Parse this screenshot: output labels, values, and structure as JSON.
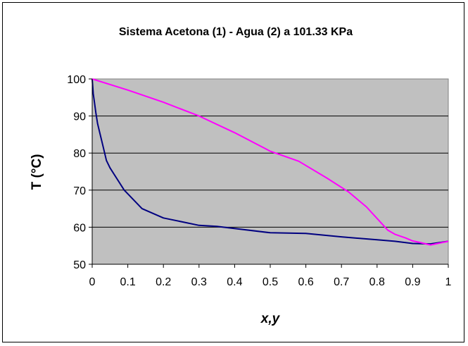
{
  "chart_data": {
    "type": "line",
    "title": "Sistema Acetona (1) - Agua (2) a 101.33 KPa",
    "xlabel": "x,y",
    "ylabel": "T (°C)",
    "xlim": [
      0,
      1
    ],
    "ylim": [
      50,
      100
    ],
    "x_ticks": [
      "0",
      "0.1",
      "0.2",
      "0.3",
      "0.4",
      "0.5",
      "0.6",
      "0.7",
      "0.8",
      "0.9",
      "1"
    ],
    "y_ticks": [
      "50",
      "60",
      "70",
      "80",
      "90",
      "100"
    ],
    "grid": true,
    "legend": "none",
    "colors": {
      "plot_background": "#c0c0c0",
      "liquid_line": "#000080",
      "vapor_line": "#ff00ff"
    },
    "series": [
      {
        "color": "#000080",
        "x": [
          0,
          0.003,
          0.006,
          0.01,
          0.015,
          0.02,
          0.03,
          0.04,
          0.05,
          0.07,
          0.09,
          0.1,
          0.12,
          0.14,
          0.2,
          0.3,
          0.35,
          0.5,
          0.6,
          0.7,
          0.8,
          0.85,
          0.9,
          0.95,
          1.0
        ],
        "y": [
          100,
          96,
          94,
          91,
          88,
          86,
          82,
          78,
          76,
          73,
          70,
          69,
          67,
          65,
          62.5,
          60.5,
          60.2,
          58.5,
          58.3,
          57.4,
          56.6,
          56.2,
          55.6,
          55.5,
          56.2
        ]
      },
      {
        "color": "#ff00ff",
        "x": [
          0,
          0.1,
          0.2,
          0.3,
          0.4,
          0.5,
          0.58,
          0.66,
          0.72,
          0.77,
          0.81,
          0.83,
          0.85,
          0.88,
          0.9,
          0.92,
          0.95,
          1.0
        ],
        "y": [
          100,
          97,
          93.7,
          90,
          85.5,
          80.5,
          77.8,
          73.2,
          69.5,
          65.5,
          61.3,
          59.2,
          58.1,
          57.1,
          56.3,
          55.9,
          55.2,
          56.2
        ]
      }
    ]
  }
}
